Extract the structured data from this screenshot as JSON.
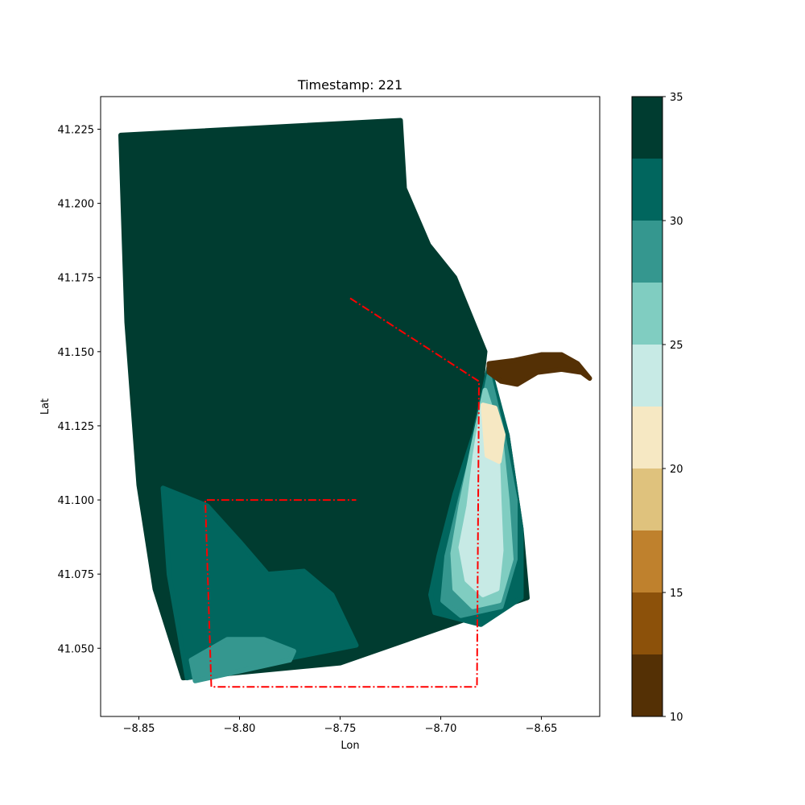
{
  "chart_data": {
    "type": "scatter",
    "title": "Timestamp: 221",
    "xlabel": "Lon",
    "ylabel": "Lat",
    "xlim": [
      -8.869,
      -8.621
    ],
    "ylim": [
      41.027,
      41.236
    ],
    "xticks": [
      -8.85,
      -8.8,
      -8.75,
      -8.7,
      -8.65
    ],
    "xtick_labels": [
      "−8.85",
      "−8.80",
      "−8.75",
      "−8.70",
      "−8.65"
    ],
    "yticks": [
      41.05,
      41.075,
      41.1,
      41.125,
      41.15,
      41.175,
      41.2,
      41.225
    ],
    "ytick_labels": [
      "41.050",
      "41.075",
      "41.100",
      "41.125",
      "41.150",
      "41.175",
      "41.200",
      "41.225"
    ],
    "grid": false,
    "colorbar": {
      "range": [
        10,
        35
      ],
      "ticks": [
        10,
        15,
        20,
        25,
        30,
        35
      ],
      "tick_labels": [
        "10",
        "15",
        "20",
        "25",
        "30",
        "35"
      ],
      "colors": [
        "#543005",
        "#8c510a",
        "#bf812d",
        "#dfc27d",
        "#f6e8c3",
        "#c7eae5",
        "#80cdc1",
        "#35978f",
        "#01665e",
        "#003c30"
      ]
    },
    "regions": [
      {
        "level": 32.5,
        "color": "#003c30",
        "points": [
          [
            -8.859,
            41.223
          ],
          [
            -8.72,
            41.228
          ],
          [
            -8.718,
            41.205
          ],
          [
            -8.706,
            41.186
          ],
          [
            -8.693,
            41.175
          ],
          [
            -8.678,
            41.15
          ],
          [
            -8.68,
            41.138
          ],
          [
            -8.667,
            41.122
          ],
          [
            -8.66,
            41.09
          ],
          [
            -8.657,
            41.067
          ],
          [
            -8.75,
            41.045
          ],
          [
            -8.828,
            41.04
          ],
          [
            -8.842,
            41.07
          ],
          [
            -8.85,
            41.105
          ],
          [
            -8.856,
            41.16
          ]
        ]
      },
      {
        "level": 30,
        "color": "#01665e",
        "points": [
          [
            -8.838,
            41.104
          ],
          [
            -8.816,
            41.098
          ],
          [
            -8.8,
            41.086
          ],
          [
            -8.786,
            41.075
          ],
          [
            -8.768,
            41.076
          ],
          [
            -8.754,
            41.068
          ],
          [
            -8.742,
            41.051
          ],
          [
            -8.826,
            41.04
          ],
          [
            -8.835,
            41.075
          ]
        ]
      },
      {
        "level": 27.5,
        "color": "#35978f",
        "points": [
          [
            -8.824,
            41.046
          ],
          [
            -8.806,
            41.053
          ],
          [
            -8.788,
            41.053
          ],
          [
            -8.773,
            41.049
          ],
          [
            -8.775,
            41.046
          ],
          [
            -8.822,
            41.039
          ]
        ]
      },
      {
        "level": 30,
        "color": "#01665e",
        "points": [
          [
            -8.676,
            41.145
          ],
          [
            -8.683,
            41.123
          ],
          [
            -8.693,
            41.102
          ],
          [
            -8.701,
            41.081
          ],
          [
            -8.705,
            41.068
          ],
          [
            -8.703,
            41.062
          ],
          [
            -8.68,
            41.058
          ],
          [
            -8.66,
            41.067
          ],
          [
            -8.66,
            41.09
          ],
          [
            -8.667,
            41.122
          ]
        ]
      },
      {
        "level": 27.5,
        "color": "#35978f",
        "points": [
          [
            -8.676,
            41.142
          ],
          [
            -8.682,
            41.122
          ],
          [
            -8.69,
            41.101
          ],
          [
            -8.697,
            41.081
          ],
          [
            -8.699,
            41.066
          ],
          [
            -8.69,
            41.061
          ],
          [
            -8.67,
            41.064
          ],
          [
            -8.663,
            41.08
          ],
          [
            -8.663,
            41.1
          ],
          [
            -8.669,
            41.122
          ]
        ]
      },
      {
        "level": 25,
        "color": "#80cdc1",
        "points": [
          [
            -8.678,
            41.137
          ],
          [
            -8.684,
            41.118
          ],
          [
            -8.69,
            41.098
          ],
          [
            -8.694,
            41.082
          ],
          [
            -8.693,
            41.07
          ],
          [
            -8.684,
            41.064
          ],
          [
            -8.671,
            41.066
          ],
          [
            -8.665,
            41.08
          ],
          [
            -8.667,
            41.1
          ],
          [
            -8.67,
            41.12
          ]
        ]
      },
      {
        "level": 22.5,
        "color": "#c7eae5",
        "points": [
          [
            -8.679,
            41.132
          ],
          [
            -8.683,
            41.115
          ],
          [
            -8.686,
            41.098
          ],
          [
            -8.69,
            41.084
          ],
          [
            -8.687,
            41.073
          ],
          [
            -8.679,
            41.068
          ],
          [
            -8.672,
            41.07
          ],
          [
            -8.67,
            41.083
          ],
          [
            -8.671,
            41.1
          ],
          [
            -8.672,
            41.12
          ]
        ]
      },
      {
        "level": 20,
        "color": "#f6e8c3",
        "points": [
          [
            -8.679,
            41.132
          ],
          [
            -8.673,
            41.131
          ],
          [
            -8.669,
            41.122
          ],
          [
            -8.671,
            41.113
          ],
          [
            -8.677,
            41.115
          ]
        ]
      },
      {
        "level": 12.5,
        "color": "#543005",
        "points": [
          [
            -8.676,
            41.146
          ],
          [
            -8.664,
            41.147
          ],
          [
            -8.65,
            41.149
          ],
          [
            -8.64,
            41.149
          ],
          [
            -8.632,
            41.146
          ],
          [
            -8.626,
            41.141
          ],
          [
            -8.63,
            41.143
          ],
          [
            -8.64,
            41.144
          ],
          [
            -8.652,
            41.143
          ],
          [
            -8.662,
            41.139
          ],
          [
            -8.67,
            41.14
          ],
          [
            -8.676,
            41.143
          ]
        ]
      }
    ],
    "boundary": {
      "style": "dash-dot",
      "color": "#ff0000",
      "points": [
        [
          -8.745,
          41.168
        ],
        [
          -8.681,
          41.14
        ],
        [
          -8.682,
          41.037
        ],
        [
          -8.814,
          41.037
        ],
        [
          -8.817,
          41.1
        ],
        [
          -8.742,
          41.1
        ]
      ]
    }
  }
}
